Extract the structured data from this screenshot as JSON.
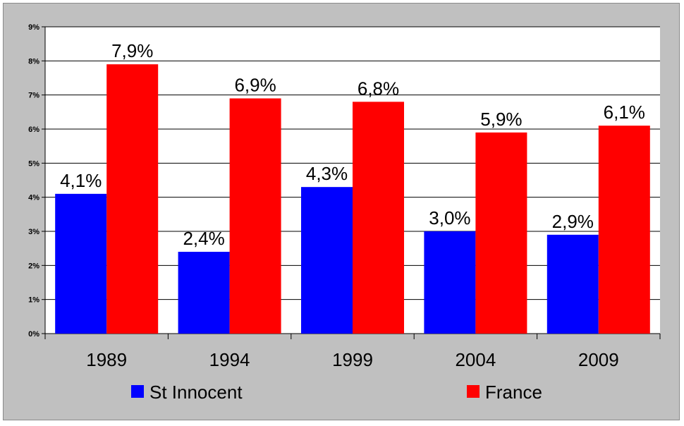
{
  "chart_data": {
    "type": "bar",
    "categories": [
      "1989",
      "1994",
      "1999",
      "2004",
      "2009"
    ],
    "series": [
      {
        "name": "St Innocent",
        "color": "#0000ff",
        "values": [
          4.1,
          2.4,
          4.3,
          3.0,
          2.9
        ],
        "labels": [
          "4,1%",
          "2,4%",
          "4,3%",
          "3,0%",
          "2,9%"
        ]
      },
      {
        "name": "France",
        "color": "#ff0000",
        "values": [
          7.9,
          6.9,
          6.8,
          5.9,
          6.1
        ],
        "labels": [
          "7,9%",
          "6,9%",
          "6,8%",
          "5,9%",
          "6,1%"
        ]
      }
    ],
    "y_ticks": [
      {
        "value": 0,
        "label": "0%"
      },
      {
        "value": 1,
        "label": "1%"
      },
      {
        "value": 2,
        "label": "2%"
      },
      {
        "value": 3,
        "label": "3%"
      },
      {
        "value": 4,
        "label": "4%"
      },
      {
        "value": 5,
        "label": "5%"
      },
      {
        "value": 6,
        "label": "6%"
      },
      {
        "value": 7,
        "label": "7%"
      },
      {
        "value": 8,
        "label": "8%"
      },
      {
        "value": 9,
        "label": "9%"
      }
    ],
    "ylim": [
      0,
      9
    ],
    "grid": true,
    "legend": "bottom",
    "plot_background": "#ffffff",
    "chart_background": "#c0c0c0"
  }
}
